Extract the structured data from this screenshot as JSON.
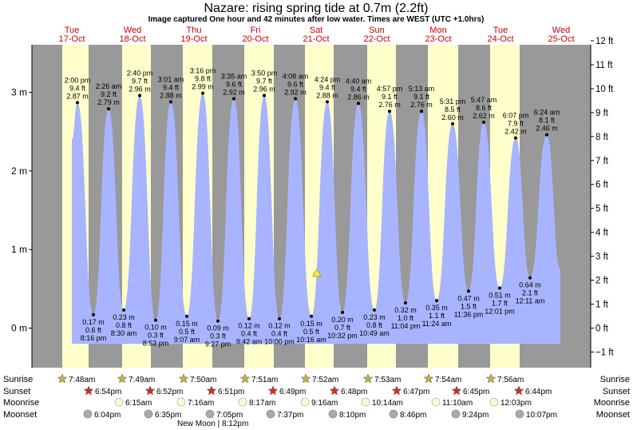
{
  "chart_data": {
    "type": "area",
    "title": "Nazare: rising  spring tide at 0.7m (2.2ft)",
    "subtitle": "Image captured One hour and 42 minutes after low water. Times are WEST (UTC +1.0hrs)",
    "ylim_m": [
      -0.6,
      3.7
    ],
    "metre_ticks": [
      "0 m",
      "1 m",
      "2 m",
      "3 m"
    ],
    "metre_values": [
      0,
      1,
      2,
      3
    ],
    "feet_ticks": [
      "−1 ft",
      "0 ft",
      "1 ft",
      "2 ft",
      "3 ft",
      "4 ft",
      "5 ft",
      "6 ft",
      "7 ft",
      "8 ft",
      "9 ft",
      "10 ft",
      "11 ft",
      "12 ft"
    ],
    "feet_values": [
      -1,
      0,
      1,
      2,
      3,
      4,
      5,
      6,
      7,
      8,
      9,
      10,
      11,
      12
    ],
    "days": [
      {
        "dow": "Tue",
        "date": "17-Oct"
      },
      {
        "dow": "Wed",
        "date": "18-Oct"
      },
      {
        "dow": "Thu",
        "date": "19-Oct"
      },
      {
        "dow": "Fri",
        "date": "20-Oct"
      },
      {
        "dow": "Sat",
        "date": "21-Oct"
      },
      {
        "dow": "Sun",
        "date": "22-Oct"
      },
      {
        "dow": "Mon",
        "date": "23-Oct"
      },
      {
        "dow": "Tue",
        "date": "24-Oct"
      },
      {
        "dow": "Wed",
        "date": "25-Oct"
      }
    ],
    "high_tides": [
      {
        "time": "2:00 pm",
        "ft": "9.4 ft",
        "m": 2.87,
        "m_label": "2.87 m"
      },
      {
        "time": "2:26 am",
        "ft": "9.2 ft",
        "m": 2.79,
        "m_label": "2.79 m"
      },
      {
        "time": "2:40 pm",
        "ft": "9.7 ft",
        "m": 2.96,
        "m_label": "2.96 m"
      },
      {
        "time": "3:01 am",
        "ft": "9.4 ft",
        "m": 2.88,
        "m_label": "2.88 m"
      },
      {
        "time": "3:16 pm",
        "ft": "9.8 ft",
        "m": 2.99,
        "m_label": "2.99 m"
      },
      {
        "time": "3:35 am",
        "ft": "9.6 ft",
        "m": 2.92,
        "m_label": "2.92 m"
      },
      {
        "time": "3:50 pm",
        "ft": "9.7 ft",
        "m": 2.96,
        "m_label": "2.96 m"
      },
      {
        "time": "4:08 am",
        "ft": "9.6 ft",
        "m": 2.92,
        "m_label": "2.92 m"
      },
      {
        "time": "4:24 pm",
        "ft": "9.4 ft",
        "m": 2.88,
        "m_label": "2.88 m"
      },
      {
        "time": "4:40 am",
        "ft": "9.4 ft",
        "m": 2.86,
        "m_label": "2.86 m"
      },
      {
        "time": "4:57 pm",
        "ft": "9.1 ft",
        "m": 2.76,
        "m_label": "2.76 m"
      },
      {
        "time": "5:13 am",
        "ft": "9.1 ft",
        "m": 2.76,
        "m_label": "2.76 m"
      },
      {
        "time": "5:31 pm",
        "ft": "8.5 ft",
        "m": 2.6,
        "m_label": "2.60 m"
      },
      {
        "time": "5:47 am",
        "ft": "8.6 ft",
        "m": 2.62,
        "m_label": "2.62 m"
      },
      {
        "time": "6:07 pm",
        "ft": "7.9 ft",
        "m": 2.42,
        "m_label": "2.42 m"
      },
      {
        "time": "6:24 am",
        "ft": "8.1 ft",
        "m": 2.46,
        "m_label": "2.46 m"
      }
    ],
    "low_tides": [
      {
        "time": "8:16 pm",
        "ft": "0.6 ft",
        "m": 0.17,
        "m_label": "0.17 m"
      },
      {
        "time": "8:30 am",
        "ft": "0.8 ft",
        "m": 0.23,
        "m_label": "0.23 m"
      },
      {
        "time": "8:53 pm",
        "ft": "0.3 ft",
        "m": 0.1,
        "m_label": "0.10 m"
      },
      {
        "time": "9:07 am",
        "ft": "0.5 ft",
        "m": 0.15,
        "m_label": "0.15 m"
      },
      {
        "time": "9:27 pm",
        "ft": "0.3 ft",
        "m": 0.09,
        "m_label": "0.09 m"
      },
      {
        "time": "9:42 am",
        "ft": "0.4 ft",
        "m": 0.12,
        "m_label": "0.12 m"
      },
      {
        "time": "10:00 pm",
        "ft": "0.4 ft",
        "m": 0.12,
        "m_label": "0.12 m"
      },
      {
        "time": "10:16 am",
        "ft": "0.5 ft",
        "m": 0.15,
        "m_label": "0.15 m"
      },
      {
        "time": "10:32 pm",
        "ft": "0.7 ft",
        "m": 0.2,
        "m_label": "0.20 m"
      },
      {
        "time": "10:49 am",
        "ft": "0.8 ft",
        "m": 0.23,
        "m_label": "0.23 m"
      },
      {
        "time": "11:04 pm",
        "ft": "1.0 ft",
        "m": 0.32,
        "m_label": "0.32 m"
      },
      {
        "time": "11:24 am",
        "ft": "1.1 ft",
        "m": 0.35,
        "m_label": "0.35 m"
      },
      {
        "time": "11:36 pm",
        "ft": "1.5 ft",
        "m": 0.47,
        "m_label": "0.47 m"
      },
      {
        "time": "12:01 pm",
        "ft": "1.7 ft",
        "m": 0.51,
        "m_label": "0.51 m"
      },
      {
        "time": "12:11 am",
        "ft": "2.1 ft",
        "m": 0.64,
        "m_label": "0.64 m"
      }
    ],
    "current_level_m": 0.7,
    "row_labels": {
      "sunrise": "Sunrise",
      "sunset": "Sunset",
      "moonrise": "Moonrise",
      "moonset": "Moonset"
    },
    "sunrise": [
      "7:48am",
      "7:49am",
      "7:50am",
      "7:51am",
      "7:52am",
      "7:53am",
      "7:54am",
      "7:56am"
    ],
    "sunset": [
      "6:54pm",
      "6:52pm",
      "6:51pm",
      "6:49pm",
      "6:48pm",
      "6:47pm",
      "6:45pm",
      "6:44pm"
    ],
    "moonrise": [
      "6:15am",
      "7:16am",
      "8:17am",
      "9:16am",
      "10:14am",
      "11:10am",
      "12:03pm"
    ],
    "moonset": [
      "6:04pm",
      "6:35pm",
      "7:05pm",
      "7:37pm",
      "8:10pm",
      "8:46pm",
      "9:24pm",
      "10:07pm"
    ],
    "new_moon": "New Moon | 8:12pm",
    "colors": {
      "night": "#999999",
      "day": "#ffffcc",
      "water": "#a8b4ff",
      "day_text": "#cc0000",
      "sun": "#c8b040",
      "sunset": "#cc3322",
      "moonrise": "#fffbd0",
      "moonset": "#aaaaaa"
    }
  }
}
